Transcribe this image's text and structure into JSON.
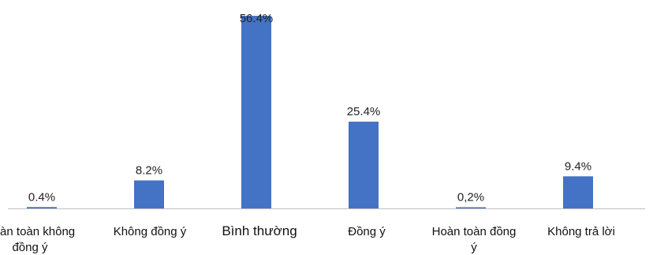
{
  "chart_data": {
    "type": "bar",
    "title": "",
    "xlabel": "",
    "ylabel": "",
    "categories": [
      "Hoàn toàn không đồng ý",
      "Không đồng ý",
      "Bình thường",
      "Đồng ý",
      "Hoàn toàn đồng ý",
      "Không trả lời"
    ],
    "values": [
      0.4,
      8.2,
      56.4,
      25.4,
      0.2,
      9.4
    ],
    "data_labels": [
      "0.4%",
      "8.2%",
      "56.4%",
      "25.4%",
      "0,2%",
      "9.4%"
    ],
    "category_lines": [
      [
        "Hoàn toàn không",
        "đồng ý"
      ],
      [
        "Không đồng ý"
      ],
      [
        "Bình thường"
      ],
      [
        "Đồng ý"
      ],
      [
        "Hoàn toàn đồng",
        "ý"
      ],
      [
        "Không trả lời"
      ]
    ],
    "ylim": [
      0,
      56.4
    ],
    "grid": false,
    "legend": "none",
    "bar_color": "#4472C4",
    "axis_color": "#BFBFBF"
  }
}
